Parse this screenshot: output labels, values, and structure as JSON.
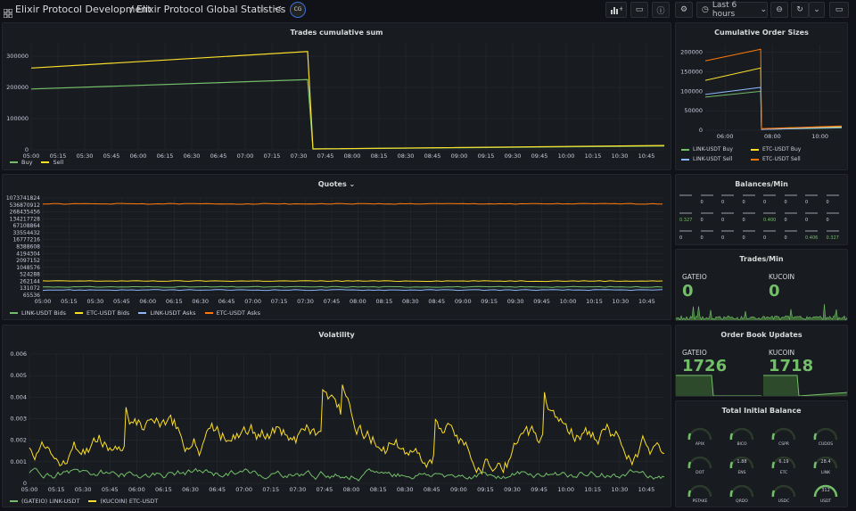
{
  "header": {
    "crumb1": "Elixir Protocol Development",
    "sep": "/",
    "crumb2": "Elixir Protocol Global Statistics",
    "avatar": "CG",
    "time_range": "Last 6 hours"
  },
  "colors": {
    "green": "#73bf69",
    "yellow": "#fade2a",
    "blue": "#8ab8ff",
    "orange": "#ff780a",
    "grid": "#2a2d33"
  },
  "panels": {
    "trades_cum": {
      "title": "Trades cumulative sum",
      "legend": [
        "Buy",
        "Sell"
      ]
    },
    "order_sizes": {
      "title": "Cumulative Order Sizes",
      "legend": [
        "LINK-USDT Buy",
        "ETC-USDT Buy",
        "LINK-USDT Sell",
        "ETC-USDT Sell"
      ]
    },
    "quotes": {
      "title": "Quotes",
      "legend": [
        "LINK-USDT Bids",
        "ETC-USDT Bids",
        "LINK-USDT Asks",
        "ETC-USDT Asks"
      ]
    },
    "balances": {
      "title": "Balances/Min"
    },
    "trades_min": {
      "title": "Trades/Min",
      "exchanges": [
        {
          "name": "GATEIO",
          "value": "0"
        },
        {
          "name": "KUCOIN",
          "value": "0"
        }
      ]
    },
    "volatility": {
      "title": "Volatility",
      "legend": [
        "(GATEIO) LINK-USDT",
        "(KUCOIN) ETC-USDT"
      ]
    },
    "order_book": {
      "title": "Order Book Updates",
      "exchanges": [
        {
          "name": "GATEIO",
          "value": "1726"
        },
        {
          "name": "KUCOIN",
          "value": "1718"
        }
      ]
    },
    "initial_balance": {
      "title": "Total Initial Balance",
      "gauges": [
        {
          "label": "APIX",
          "value": ""
        },
        {
          "label": "BICO",
          "value": ""
        },
        {
          "label": "CSPR",
          "value": ""
        },
        {
          "label": "CUDOS",
          "value": ""
        },
        {
          "label": "DOT",
          "value": ""
        },
        {
          "label": "ENS",
          "value": "1.88"
        },
        {
          "label": "ETC",
          "value": "6.19"
        },
        {
          "label": "LINK",
          "value": "28.4"
        },
        {
          "label": "PSTAKE",
          "value": ""
        },
        {
          "label": "QRDO",
          "value": ""
        },
        {
          "label": "USDC",
          "value": ""
        },
        {
          "label": "USDT",
          "value": "312"
        }
      ]
    }
  },
  "chart_data": [
    {
      "type": "line",
      "title": "Trades cumulative sum",
      "x_ticks": [
        "05:00",
        "05:15",
        "05:30",
        "05:45",
        "06:00",
        "06:15",
        "06:30",
        "06:45",
        "07:00",
        "07:15",
        "07:30",
        "07:45",
        "08:00",
        "08:15",
        "08:30",
        "08:45",
        "09:00",
        "09:15",
        "09:30",
        "09:45",
        "10:00",
        "10:15",
        "10:30",
        "10:45"
      ],
      "y_ticks": [
        0,
        100000,
        200000,
        300000
      ],
      "ylim": [
        0,
        340000
      ],
      "series": [
        {
          "name": "Buy",
          "color": "#73bf69",
          "x": [
            "05:00",
            "07:35",
            "07:38",
            "10:55"
          ],
          "y": [
            195000,
            225000,
            3000,
            12000
          ]
        },
        {
          "name": "Sell",
          "color": "#fade2a",
          "x": [
            "05:00",
            "07:35",
            "07:38",
            "10:55"
          ],
          "y": [
            262000,
            315000,
            3000,
            14000
          ]
        }
      ]
    },
    {
      "type": "line",
      "title": "Cumulative Order Sizes",
      "x_ticks": [
        "06:00",
        "08:00",
        "10:00"
      ],
      "y_ticks": [
        0,
        50000,
        100000,
        150000,
        200000
      ],
      "ylim": [
        0,
        220000
      ],
      "series": [
        {
          "name": "LINK-USDT Buy",
          "color": "#73bf69",
          "x": [
            "05:10",
            "07:30",
            "07:32",
            "10:55"
          ],
          "y": [
            85000,
            100000,
            2000,
            6000
          ]
        },
        {
          "name": "ETC-USDT Buy",
          "color": "#fade2a",
          "x": [
            "05:10",
            "07:30",
            "07:32",
            "10:55"
          ],
          "y": [
            128000,
            160000,
            3000,
            9000
          ]
        },
        {
          "name": "LINK-USDT Sell",
          "color": "#8ab8ff",
          "x": [
            "05:10",
            "07:30",
            "07:32",
            "10:55"
          ],
          "y": [
            92000,
            110000,
            2000,
            7000
          ]
        },
        {
          "name": "ETC-USDT Sell",
          "color": "#ff780a",
          "x": [
            "05:10",
            "07:30",
            "07:32",
            "10:55"
          ],
          "y": [
            178000,
            208000,
            4000,
            11000
          ]
        }
      ]
    },
    {
      "type": "line",
      "title": "Quotes",
      "scale": "log2",
      "x_ticks": [
        "05:00",
        "05:15",
        "05:30",
        "05:45",
        "06:00",
        "06:15",
        "06:30",
        "06:45",
        "07:00",
        "07:15",
        "07:30",
        "07:45",
        "08:00",
        "08:15",
        "08:30",
        "08:45",
        "09:00",
        "09:15",
        "09:30",
        "09:45",
        "10:00",
        "10:15",
        "10:30",
        "10:45"
      ],
      "y_ticks": [
        "65536",
        "131072",
        "262144",
        "524288",
        "1048576",
        "2097152",
        "4194304",
        "8388608",
        "16777216",
        "33554432",
        "67108864",
        "134217728",
        "268435456",
        "536870912",
        "1073741824"
      ],
      "series": [
        {
          "name": "LINK-USDT Bids",
          "color": "#73bf69",
          "y_level": 150000
        },
        {
          "name": "ETC-USDT Bids",
          "color": "#fade2a",
          "y_level": 270000
        },
        {
          "name": "LINK-USDT Asks",
          "color": "#8ab8ff",
          "y_level": 110000
        },
        {
          "name": "ETC-USDT Asks",
          "color": "#ff780a",
          "y_level": 600000000
        }
      ]
    },
    {
      "type": "line",
      "title": "Volatility",
      "x_ticks": [
        "05:00",
        "05:15",
        "05:30",
        "05:45",
        "06:00",
        "06:15",
        "06:30",
        "06:45",
        "07:00",
        "07:15",
        "07:30",
        "07:45",
        "08:00",
        "08:15",
        "08:30",
        "08:45",
        "09:00",
        "09:15",
        "09:30",
        "09:45",
        "10:00",
        "10:15",
        "10:30",
        "10:45"
      ],
      "y_ticks": [
        "0",
        "0.001",
        "0.002",
        "0.003",
        "0.004",
        "0.005",
        "0.006"
      ],
      "ylim": [
        0,
        0.006
      ],
      "series": [
        {
          "name": "(GATEIO) LINK-USDT",
          "color": "#73bf69",
          "mean": 0.0004
        },
        {
          "name": "(KUCOIN) ETC-USDT",
          "color": "#fade2a",
          "mean": 0.002
        }
      ]
    }
  ],
  "balances_cells": [
    [
      "",
      "0",
      "0",
      "0",
      "0",
      "0",
      "0",
      "0"
    ],
    [
      "0.327",
      "0",
      "0",
      "0",
      "0.400",
      "0",
      "0",
      "0"
    ],
    [
      "0",
      "0",
      "0",
      "0",
      "0",
      "0",
      "0.406",
      "0.327"
    ]
  ]
}
